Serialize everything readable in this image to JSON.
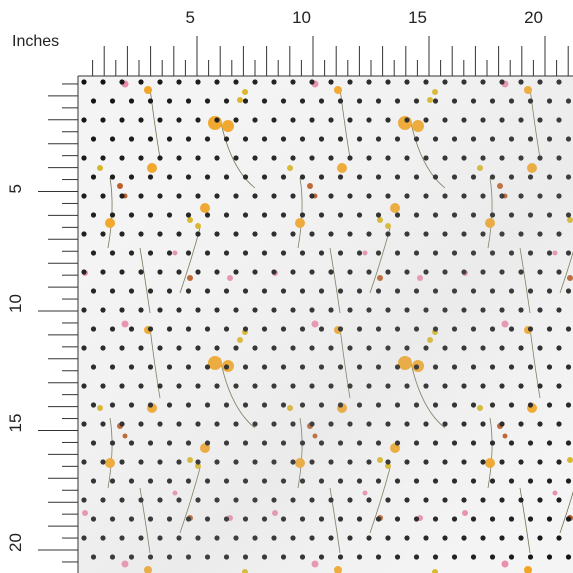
{
  "ruler": {
    "unit": "Inches",
    "top": [
      5,
      10,
      15,
      20
    ],
    "left": [
      5,
      10,
      15,
      20
    ]
  }
}
